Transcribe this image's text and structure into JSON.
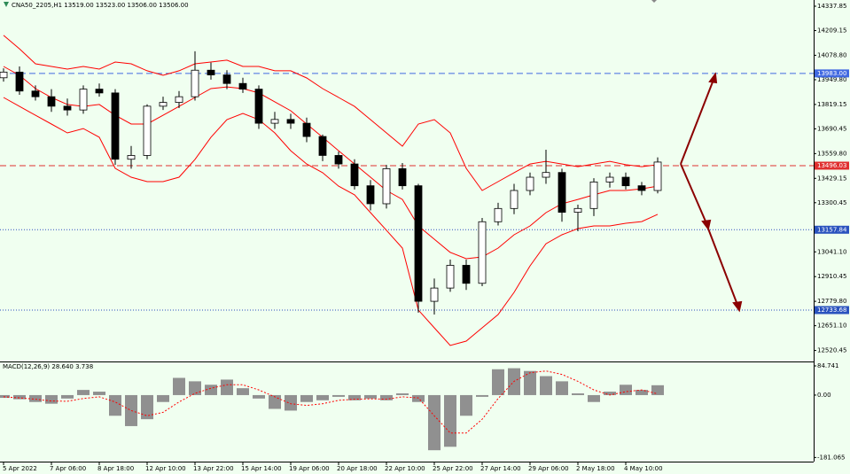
{
  "chart_data": [
    {
      "type": "candlestick",
      "title": "CNA50_2205,H1  13519.00 13523.00 13506.00 13506.00",
      "categories": [
        "5 Apr 2022",
        null,
        null,
        "7 Apr 06:00",
        null,
        null,
        "8 Apr 18:00",
        null,
        null,
        "12 Apr 10:00",
        null,
        null,
        "13 Apr 22:00",
        null,
        null,
        "15 Apr 14:00",
        null,
        null,
        "19 Apr 06:00",
        null,
        null,
        "20 Apr 18:00",
        null,
        null,
        "22 Apr 10:00",
        null,
        null,
        "25 Apr 22:00",
        null,
        null,
        "27 Apr 14:00",
        null,
        null,
        "29 Apr 06:00",
        null,
        null,
        "2 May 18:00",
        null,
        null,
        "4 May 10:00",
        null,
        null
      ],
      "open": [
        13960,
        13990,
        13890,
        13860,
        13810,
        13790,
        13900,
        13880,
        13530,
        13550,
        13810,
        13830,
        13860,
        14000,
        13975,
        13930,
        13900,
        13720,
        13740,
        13720,
        13650,
        13550,
        13505,
        13390,
        13295,
        13480,
        13390,
        12780,
        12850,
        12970,
        12875,
        13200,
        13270,
        13365,
        13435,
        13460,
        13250,
        13270,
        13410,
        13435,
        13390,
        13365
      ],
      "high": [
        14010,
        14020,
        13920,
        13900,
        13850,
        13920,
        13930,
        13900,
        13600,
        13820,
        13860,
        13890,
        14100,
        14040,
        14000,
        13960,
        13920,
        13780,
        13770,
        13750,
        13660,
        13570,
        13530,
        13420,
        13500,
        13510,
        13400,
        12900,
        13000,
        13000,
        13220,
        13300,
        13400,
        13460,
        13580,
        13480,
        13290,
        13430,
        13460,
        13460,
        13410,
        13540
      ],
      "low": [
        13940,
        13870,
        13840,
        13780,
        13760,
        13770,
        13860,
        13500,
        13480,
        13530,
        13790,
        13800,
        13840,
        13950,
        13900,
        13880,
        13690,
        13690,
        13690,
        13620,
        13520,
        13480,
        13370,
        13260,
        13270,
        13370,
        12720,
        12710,
        12830,
        12840,
        12860,
        13180,
        13240,
        13340,
        13400,
        13200,
        13150,
        13230,
        13380,
        13370,
        13340,
        13350
      ],
      "close": [
        13990,
        13890,
        13860,
        13810,
        13790,
        13900,
        13880,
        13530,
        13550,
        13810,
        13830,
        13860,
        14000,
        13975,
        13930,
        13900,
        13720,
        13740,
        13720,
        13650,
        13550,
        13505,
        13390,
        13295,
        13480,
        13390,
        12780,
        12850,
        12970,
        12875,
        13200,
        13270,
        13365,
        13435,
        13460,
        13250,
        13270,
        13410,
        13435,
        13390,
        13365,
        13515
      ],
      "color": "#000000",
      "bands": {
        "color": "#ff0000",
        "upper": [
          14184,
          14113,
          14034,
          14020,
          14006,
          14020,
          14006,
          14043,
          14034,
          13997,
          13973,
          13997,
          14034,
          14043,
          14053,
          14020,
          14020,
          13997,
          13997,
          13959,
          13903,
          13856,
          13809,
          13739,
          13669,
          13599,
          13716,
          13739,
          13669,
          13482,
          13365,
          13412,
          13459,
          13505,
          13519,
          13505,
          13491,
          13505,
          13519,
          13501,
          13491,
          13501
        ],
        "middle": [
          14020,
          13973,
          13903,
          13856,
          13819,
          13809,
          13819,
          13762,
          13716,
          13716,
          13762,
          13809,
          13856,
          13903,
          13912,
          13903,
          13880,
          13833,
          13786,
          13716,
          13646,
          13575,
          13505,
          13435,
          13365,
          13318,
          13178,
          13108,
          13038,
          13005,
          13014,
          13061,
          13131,
          13178,
          13248,
          13295,
          13318,
          13342,
          13365,
          13365,
          13374,
          13388
        ],
        "lower": [
          13856,
          13809,
          13762,
          13716,
          13669,
          13692,
          13646,
          13482,
          13435,
          13412,
          13412,
          13435,
          13529,
          13646,
          13739,
          13772,
          13739,
          13669,
          13575,
          13505,
          13459,
          13388,
          13342,
          13248,
          13155,
          13061,
          12734,
          12640,
          12547,
          12570,
          12640,
          12710,
          12827,
          12967,
          13084,
          13131,
          13164,
          13178,
          13178,
          13192,
          13201,
          13239
        ]
      },
      "levels": [
        {
          "value": 13983,
          "label": "13983.00",
          "color": "#4169e1",
          "style": "dashed"
        },
        {
          "value": 13496.03,
          "label": "13496.03",
          "color": "#e03030",
          "style": "dashed"
        },
        {
          "value": 13157.84,
          "label": "13157.84",
          "color": "#2a52be",
          "style": "dotted"
        },
        {
          "value": 12733.68,
          "label": "12733.68",
          "color": "#2a52be",
          "style": "dotted"
        }
      ],
      "ylim": [
        12467,
        14370.6
      ],
      "yticks": [
        14337.85,
        14209.15,
        {
          "value": 14078.8,
          "label": "14078.80"
        },
        {
          "value": 13949.8,
          "label": "13949.80"
        },
        13819.15,
        13690.45,
        {
          "value": 13559.8,
          "label": "13559.80"
        },
        13429.15,
        13300.45,
        {
          "value": 13041.1,
          "label": "13041.10"
        },
        12910.45,
        {
          "value": 12779.8,
          "label": "12779.80"
        },
        {
          "value": 12651.1,
          "label": "12651.10"
        },
        12520.45
      ]
    },
    {
      "type": "macd",
      "title": "MACD(12,26,9) 28.640 3.738",
      "series": [
        {
          "type": "bar",
          "color": "#909090",
          "values": [
            -8,
            -12,
            -20,
            -25,
            -10,
            15,
            10,
            -60,
            -90,
            -70,
            -20,
            50,
            40,
            30,
            45,
            20,
            -10,
            -40,
            -45,
            -20,
            -15,
            -5,
            -15,
            -10,
            -15,
            5,
            -20,
            -160,
            -150,
            -60,
            -5,
            75,
            78,
            70,
            55,
            40,
            5,
            -20,
            10,
            30,
            15,
            28.64
          ]
        },
        {
          "type": "line",
          "color": "#ff0000",
          "values": [
            -5,
            -8,
            -12,
            -17,
            -18,
            -10,
            -5,
            -20,
            -45,
            -60,
            -50,
            -20,
            5,
            20,
            30,
            30,
            15,
            -5,
            -25,
            -30,
            -25,
            -15,
            -12,
            -11,
            -12,
            -5,
            -8,
            -60,
            -110,
            -110,
            -70,
            -10,
            40,
            65,
            70,
            60,
            40,
            15,
            0,
            10,
            15,
            3.738
          ]
        }
      ],
      "ylim": [
        -193,
        95
      ],
      "yticks": [
        84.741,
        {
          "value": 0,
          "label": "0.00"
        },
        -181.065
      ]
    }
  ]
}
